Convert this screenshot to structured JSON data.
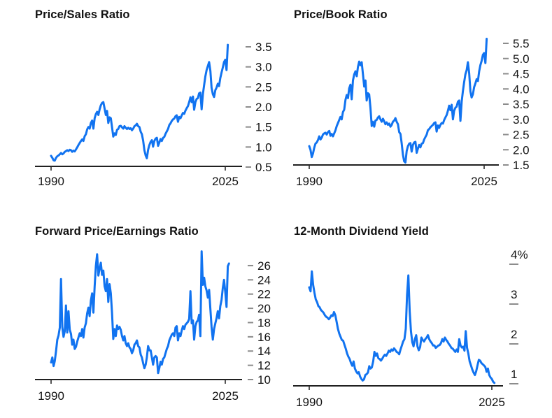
{
  "page": {
    "background": "#ffffff",
    "accent_blue": "#1173F0",
    "axis_color": "#000000",
    "tick_dash_color": "#8c8c8c",
    "text_color": "#141414"
  },
  "chart_data": [
    {
      "type": "line",
      "title": "Price/Sales Ratio",
      "legend": null,
      "grid": false,
      "line_color": "#1173F0",
      "x_axis": {
        "tick_labels": [
          "1990",
          "2025"
        ],
        "tick_years": [
          1990,
          2025
        ]
      },
      "y_axis": {
        "side": "right",
        "tick_style": "dash-left-of-label",
        "values": [
          3.5,
          3.0,
          2.5,
          2.0,
          1.5,
          1.0,
          0.5
        ],
        "labels": [
          "3.5",
          "3.0",
          "2.5",
          "2.0",
          "1.5",
          "1.0",
          "0.5"
        ],
        "range": [
          0.5,
          3.6
        ]
      },
      "series": {
        "x_start": 1990.0,
        "x_step": 0.25,
        "values": [
          0.78,
          0.73,
          0.67,
          0.66,
          0.73,
          0.77,
          0.79,
          0.82,
          0.85,
          0.82,
          0.84,
          0.88,
          0.9,
          0.92,
          0.9,
          0.93,
          0.92,
          0.88,
          0.91,
          0.89,
          0.94,
          0.99,
          1.05,
          1.1,
          1.15,
          1.19,
          1.15,
          1.27,
          1.32,
          1.44,
          1.5,
          1.46,
          1.6,
          1.66,
          1.46,
          1.72,
          1.82,
          1.88,
          1.8,
          1.94,
          2.04,
          2.1,
          2.12,
          1.96,
          1.8,
          1.9,
          1.6,
          1.74,
          1.72,
          1.5,
          1.26,
          1.34,
          1.3,
          1.43,
          1.45,
          1.52,
          1.53,
          1.49,
          1.46,
          1.52,
          1.48,
          1.45,
          1.48,
          1.45,
          1.47,
          1.42,
          1.46,
          1.52,
          1.54,
          1.58,
          1.52,
          1.5,
          1.38,
          1.32,
          1.16,
          0.92,
          0.79,
          0.72,
          0.93,
          1.05,
          1.13,
          1.17,
          1.01,
          1.15,
          1.21,
          1.23,
          1.03,
          1.11,
          1.2,
          1.15,
          1.23,
          1.25,
          1.33,
          1.39,
          1.45,
          1.55,
          1.59,
          1.65,
          1.69,
          1.71,
          1.77,
          1.79,
          1.63,
          1.75,
          1.72,
          1.79,
          1.85,
          1.83,
          1.91,
          1.97,
          2.02,
          2.12,
          2.24,
          2.12,
          2.26,
          1.93,
          2.12,
          2.2,
          2.22,
          2.34,
          2.36,
          1.94,
          2.32,
          2.55,
          2.76,
          2.92,
          3.02,
          3.12,
          2.9,
          2.48,
          2.32,
          2.25,
          2.42,
          2.48,
          2.58,
          2.52,
          2.72,
          2.86,
          2.98,
          3.12,
          3.18,
          2.92,
          3.55
        ]
      }
    },
    {
      "type": "line",
      "title": "Price/Book Ratio",
      "legend": null,
      "grid": false,
      "line_color": "#1173F0",
      "x_axis": {
        "tick_labels": [
          "1990",
          "2025"
        ],
        "tick_years": [
          1990,
          2025
        ]
      },
      "y_axis": {
        "side": "right",
        "tick_style": "dash-left-of-label",
        "values": [
          5.5,
          5.0,
          4.5,
          4.0,
          3.5,
          3.0,
          2.5,
          2.0,
          1.5
        ],
        "labels": [
          "5.5",
          "5.0",
          "4.5",
          "4.0",
          "3.5",
          "3.0",
          "2.5",
          "2.0",
          "1.5"
        ],
        "range": [
          1.5,
          5.7
        ]
      },
      "series": {
        "x_start": 1990.0,
        "x_step": 0.25,
        "values": [
          2.12,
          2.0,
          1.76,
          1.88,
          2.06,
          2.2,
          2.24,
          2.32,
          2.44,
          2.34,
          2.4,
          2.5,
          2.54,
          2.56,
          2.5,
          2.58,
          2.62,
          2.46,
          2.52,
          2.44,
          2.54,
          2.64,
          2.78,
          2.88,
          2.98,
          3.08,
          3.0,
          3.24,
          3.32,
          3.64,
          3.8,
          3.7,
          4.02,
          4.14,
          3.66,
          4.28,
          4.48,
          4.58,
          4.42,
          4.72,
          4.9,
          4.78,
          4.88,
          4.48,
          4.08,
          4.28,
          3.62,
          3.86,
          3.82,
          3.38,
          2.78,
          2.92,
          2.76,
          2.96,
          2.98,
          3.06,
          3.1,
          3.0,
          2.92,
          3.02,
          2.94,
          2.84,
          2.9,
          2.82,
          2.86,
          2.76,
          2.82,
          2.92,
          2.96,
          3.04,
          2.92,
          2.84,
          2.58,
          2.52,
          2.22,
          1.84,
          1.62,
          1.58,
          1.96,
          2.12,
          2.2,
          2.22,
          1.94,
          2.16,
          2.24,
          2.26,
          1.9,
          2.04,
          2.16,
          2.08,
          2.2,
          2.22,
          2.34,
          2.42,
          2.5,
          2.64,
          2.68,
          2.74,
          2.78,
          2.82,
          2.88,
          2.9,
          2.6,
          2.8,
          2.72,
          2.82,
          2.88,
          2.86,
          2.98,
          3.06,
          3.14,
          3.28,
          3.45,
          3.3,
          3.48,
          3.0,
          3.28,
          3.38,
          3.42,
          3.58,
          3.62,
          2.95,
          3.58,
          3.92,
          4.22,
          4.48,
          4.62,
          4.88,
          4.52,
          3.92,
          3.72,
          3.82,
          4.06,
          4.18,
          4.32,
          4.26,
          4.58,
          4.78,
          4.92,
          5.12,
          5.18,
          4.85,
          5.65
        ]
      }
    },
    {
      "type": "line",
      "title": "Forward Price/Earnings Ratio",
      "legend": null,
      "grid": false,
      "line_color": "#1173F0",
      "x_axis": {
        "tick_labels": [
          "1990",
          "2025"
        ],
        "tick_years": [
          1990,
          2025
        ]
      },
      "y_axis": {
        "side": "right",
        "tick_style": "dash-left-of-label",
        "values": [
          26,
          24,
          22,
          20,
          18,
          16,
          14,
          12,
          10
        ],
        "labels": [
          "26",
          "24",
          "22",
          "20",
          "18",
          "16",
          "14",
          "12",
          "10"
        ],
        "range": [
          10,
          28.5
        ]
      },
      "series": {
        "x_start": 1990.0,
        "x_step": 0.25,
        "values": [
          12.4,
          13.1,
          11.9,
          12.6,
          14.0,
          15.6,
          16.2,
          17.3,
          24.1,
          17.4,
          16.0,
          16.8,
          20.4,
          16.6,
          19.6,
          17.0,
          16.4,
          14.9,
          15.6,
          14.3,
          14.6,
          15.3,
          15.9,
          16.5,
          16.1,
          17.1,
          15.9,
          17.3,
          17.9,
          19.3,
          20.1,
          18.9,
          21.1,
          22.1,
          19.4,
          23.1,
          25.9,
          27.6,
          24.6,
          25.6,
          26.4,
          24.7,
          25.3,
          23.1,
          22.4,
          24.1,
          20.9,
          23.4,
          22.1,
          19.4,
          15.7,
          17.1,
          16.1,
          17.6,
          17.1,
          17.4,
          17.0,
          16.1,
          15.5,
          16.1,
          15.1,
          14.7,
          15.1,
          14.5,
          14.3,
          13.7,
          14.1,
          14.9,
          15.1,
          15.5,
          14.7,
          14.5,
          13.5,
          13.1,
          12.3,
          11.6,
          12.1,
          13.1,
          14.7,
          14.1,
          14.1,
          13.1,
          12.1,
          13.1,
          13.3,
          13.1,
          10.9,
          11.6,
          12.5,
          12.1,
          12.9,
          13.1,
          13.7,
          14.3,
          14.7,
          15.5,
          15.9,
          16.3,
          16.5,
          16.1,
          17.3,
          17.5,
          15.5,
          16.5,
          16.1,
          16.9,
          17.5,
          17.1,
          17.7,
          17.9,
          18.1,
          18.5,
          22.4,
          17.9,
          18.3,
          15.6,
          17.5,
          18.1,
          18.3,
          19.1,
          16.1,
          28.0,
          23.3,
          24.3,
          23.1,
          22.5,
          21.5,
          22.6,
          19.9,
          17.4,
          15.6,
          17.1,
          17.9,
          18.6,
          19.6,
          18.6,
          20.3,
          21.2,
          22.8,
          24.0,
          22.3,
          20.2,
          25.9,
          26.3
        ]
      }
    },
    {
      "type": "line",
      "title": "12-Month Dividend Yield",
      "legend": null,
      "grid": false,
      "line_color": "#1173F0",
      "x_axis": {
        "tick_labels": [
          "1990",
          "2025"
        ],
        "tick_years": [
          1990,
          2025
        ]
      },
      "y_axis": {
        "side": "right",
        "tick_style": "label-above-dash",
        "values": [
          4,
          3,
          2,
          1
        ],
        "labels": [
          "4%",
          "3",
          "2",
          "1"
        ],
        "range": [
          0.9,
          4.0
        ]
      },
      "series": {
        "x_start": 1990.0,
        "x_step": 0.25,
        "values": [
          3.42,
          3.32,
          3.82,
          3.48,
          3.28,
          3.12,
          3.05,
          2.95,
          2.92,
          2.85,
          2.82,
          2.78,
          2.72,
          2.68,
          2.66,
          2.62,
          2.66,
          2.72,
          2.7,
          2.8,
          2.72,
          2.55,
          2.38,
          2.26,
          2.18,
          2.1,
          2.08,
          1.98,
          1.88,
          1.76,
          1.68,
          1.62,
          1.52,
          1.45,
          1.56,
          1.38,
          1.31,
          1.26,
          1.29,
          1.18,
          1.12,
          1.08,
          1.11,
          1.22,
          1.24,
          1.28,
          1.44,
          1.38,
          1.41,
          1.56,
          1.8,
          1.7,
          1.76,
          1.64,
          1.62,
          1.58,
          1.63,
          1.69,
          1.73,
          1.7,
          1.76,
          1.83,
          1.8,
          1.86,
          1.83,
          1.89,
          1.85,
          1.8,
          1.78,
          1.74,
          1.86,
          1.96,
          2.06,
          2.12,
          2.38,
          3.22,
          3.72,
          2.82,
          2.32,
          2.04,
          1.94,
          2.12,
          2.22,
          1.94,
          1.84,
          1.92,
          2.16,
          2.1,
          2.06,
          2.12,
          2.16,
          2.22,
          2.12,
          2.06,
          2.02,
          1.96,
          1.96,
          1.9,
          1.93,
          1.96,
          1.97,
          2.02,
          2.12,
          2.06,
          2.16,
          2.1,
          2.06,
          2.0,
          1.96,
          1.9,
          1.88,
          1.84,
          1.8,
          1.86,
          1.8,
          2.12,
          1.96,
          1.91,
          1.93,
          1.83,
          2.32,
          1.9,
          1.76,
          1.56,
          1.46,
          1.36,
          1.28,
          1.22,
          1.31,
          1.46,
          1.6,
          1.58,
          1.52,
          1.49,
          1.46,
          1.42,
          1.3,
          1.38,
          1.22,
          1.16,
          1.12,
          1.05,
          1.02
        ]
      }
    }
  ]
}
